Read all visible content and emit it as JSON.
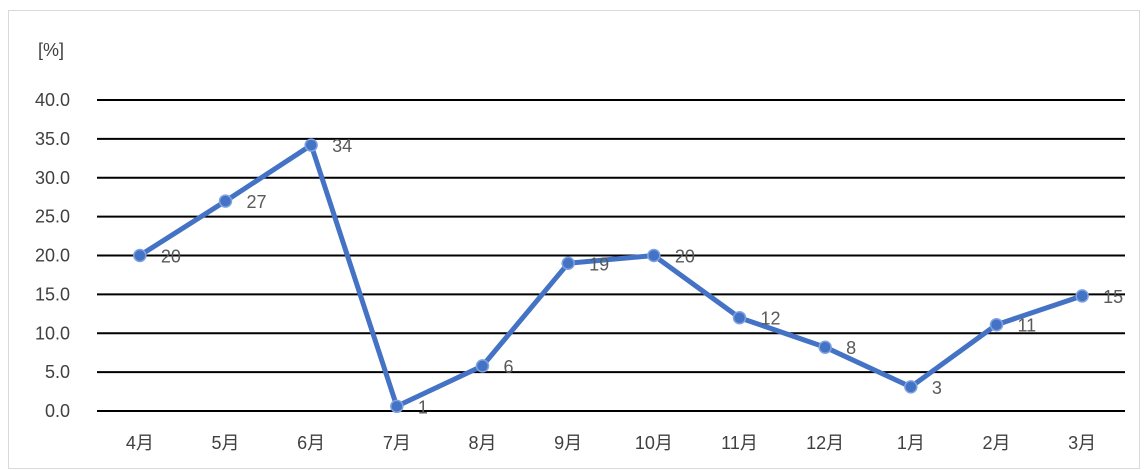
{
  "chart_data": {
    "type": "line",
    "title": "",
    "xlabel": "",
    "ylabel": "[%]",
    "categories": [
      "4月",
      "5月",
      "6月",
      "7月",
      "8月",
      "9月",
      "10月",
      "11月",
      "12月",
      "1月",
      "2月",
      "3月"
    ],
    "series": [
      {
        "values": [
          20.0,
          27.0,
          34.2,
          0.6,
          5.8,
          19.0,
          20.0,
          12.0,
          8.2,
          3.1,
          11.1,
          14.8
        ],
        "data_labels": [
          "20",
          "27",
          "34",
          "1",
          "6",
          "19",
          "20",
          "12",
          "8",
          "3",
          "11",
          "15"
        ]
      }
    ],
    "ylim": [
      0,
      40
    ],
    "yticks": [
      0,
      5,
      10,
      15,
      20,
      25,
      30,
      35,
      40
    ],
    "ytick_labels": [
      "0.0",
      "5.0",
      "10.0",
      "15.0",
      "20.0",
      "25.0",
      "30.0",
      "35.0",
      "40.0"
    ],
    "grid": true,
    "legend": "none",
    "markers": "circle",
    "colors": {
      "line": "#4472C4",
      "marker_fill": "#4472C4",
      "marker_edge": "#7FA3E0",
      "grid": "#000000",
      "border": "#D9D9D9",
      "background": "#FFFFFF"
    }
  }
}
